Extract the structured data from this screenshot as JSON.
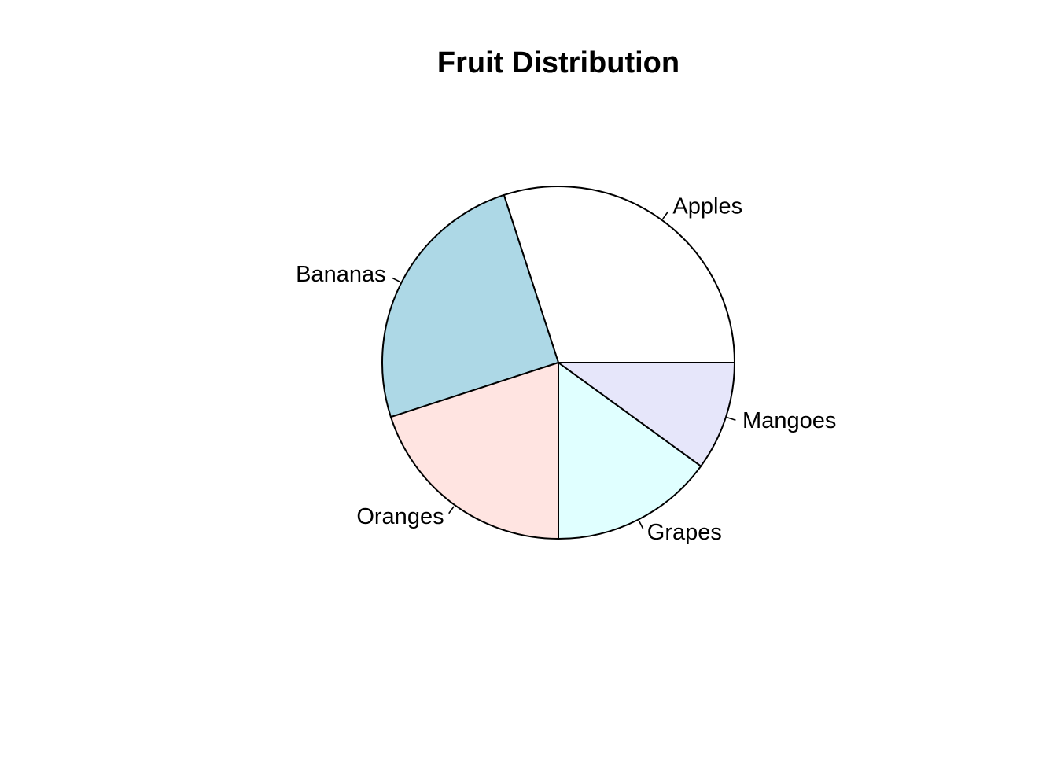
{
  "chart_data": {
    "type": "pie",
    "title": "Fruit Distribution",
    "categories": [
      "Apples",
      "Bananas",
      "Oranges",
      "Grapes",
      "Mangoes"
    ],
    "values": [
      30,
      25,
      20,
      15,
      10
    ],
    "colors": [
      "#ffffff",
      "#add8e6",
      "#ffe4e1",
      "#e0ffff",
      "#e6e6fa"
    ],
    "start_angle_deg": 0,
    "direction": "counterclockwise",
    "legend": "none",
    "outline_color": "#000000"
  }
}
